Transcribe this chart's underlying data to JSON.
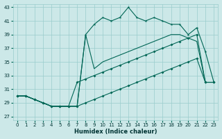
{
  "xlabel": "Humidex (Indice chaleur)",
  "xlim": [
    -0.5,
    23.5
  ],
  "ylim": [
    26.5,
    43.5
  ],
  "yticks": [
    27,
    29,
    31,
    33,
    35,
    37,
    39,
    41,
    43
  ],
  "xticks": [
    0,
    1,
    2,
    3,
    4,
    5,
    6,
    7,
    8,
    9,
    10,
    11,
    12,
    13,
    14,
    15,
    16,
    17,
    18,
    19,
    20,
    21,
    22,
    23
  ],
  "bg_color": "#cce8e8",
  "grid_color": "#99cccc",
  "line_color": "#006655",
  "s1x": [
    0,
    1,
    2,
    3,
    4,
    5,
    6,
    7,
    8,
    9,
    10,
    11,
    12,
    13,
    14,
    15,
    16,
    17,
    18,
    19,
    20,
    21,
    22,
    23
  ],
  "s1y": [
    30.0,
    30.0,
    29.5,
    29.0,
    28.5,
    28.5,
    28.5,
    28.5,
    39.0,
    40.5,
    41.5,
    41.0,
    41.5,
    43.0,
    41.5,
    41.0,
    41.5,
    41.0,
    40.5,
    40.5,
    39.0,
    40.0,
    36.5,
    32.0
  ],
  "s2x": [
    0,
    1,
    2,
    3,
    4,
    5,
    6,
    7,
    8,
    9,
    10,
    11,
    12,
    13,
    14,
    15,
    16,
    17,
    18,
    19,
    20,
    21,
    22,
    23
  ],
  "s2y": [
    30.0,
    30.0,
    29.5,
    29.0,
    28.5,
    28.5,
    28.5,
    28.5,
    39.0,
    34.0,
    35.0,
    35.5,
    36.0,
    36.5,
    37.0,
    37.5,
    38.0,
    38.5,
    39.0,
    39.0,
    38.5,
    38.0,
    32.0,
    32.0
  ],
  "s3x": [
    0,
    1,
    2,
    3,
    4,
    5,
    6,
    7,
    8,
    9,
    10,
    11,
    12,
    13,
    14,
    15,
    16,
    17,
    18,
    19,
    20,
    21,
    22,
    23
  ],
  "s3y": [
    30.0,
    30.0,
    29.5,
    29.0,
    28.5,
    28.5,
    28.5,
    32.0,
    32.5,
    33.0,
    33.5,
    34.0,
    34.5,
    35.0,
    35.5,
    36.0,
    36.5,
    37.0,
    37.5,
    38.0,
    38.5,
    39.0,
    32.0,
    32.0
  ],
  "s4x": [
    0,
    1,
    2,
    3,
    4,
    5,
    6,
    7,
    8,
    9,
    10,
    11,
    12,
    13,
    14,
    15,
    16,
    17,
    18,
    19,
    20,
    21,
    22,
    23
  ],
  "s4y": [
    30.0,
    30.0,
    29.5,
    29.0,
    28.5,
    28.5,
    28.5,
    28.5,
    29.0,
    29.5,
    30.0,
    30.5,
    31.0,
    31.5,
    32.0,
    32.5,
    33.0,
    33.5,
    34.0,
    34.5,
    35.0,
    35.5,
    32.0,
    32.0
  ]
}
